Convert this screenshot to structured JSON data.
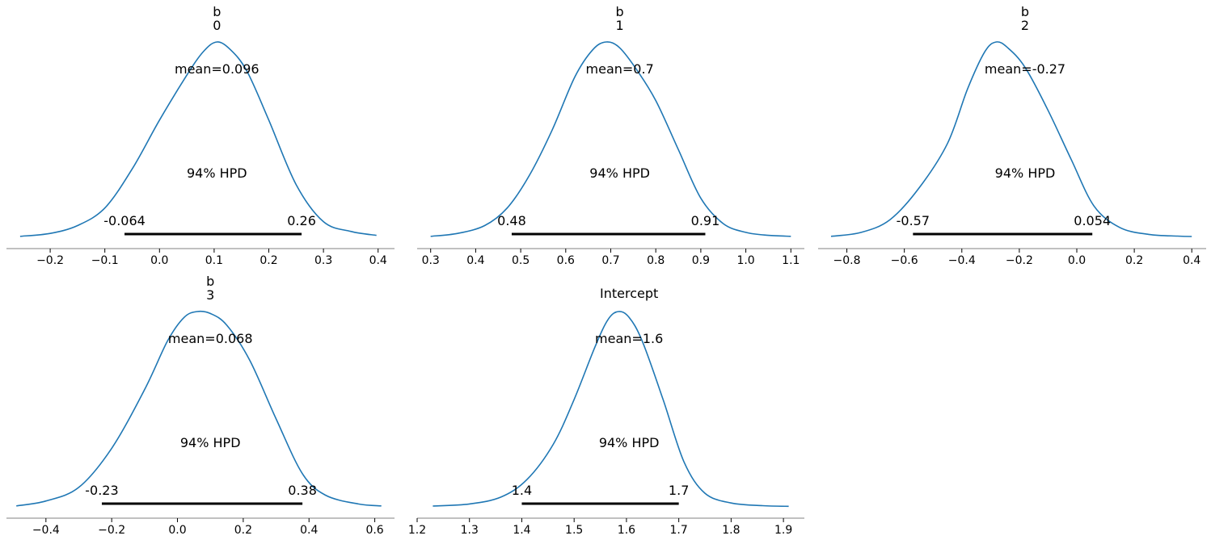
{
  "colors": {
    "curve": "#1f77b4",
    "hpd_bar": "#000000",
    "axis": "#808080"
  },
  "chart_data": [
    {
      "type": "line",
      "title_lines": [
        "b",
        "0"
      ],
      "mean_label": "mean=0.096",
      "hpd_label": "94% HPD",
      "hpd": {
        "low": -0.064,
        "high": 0.26,
        "low_label": "-0.064",
        "high_label": "0.26"
      },
      "xlim": [
        -0.28,
        0.43
      ],
      "ticks": [
        -0.2,
        -0.1,
        0.0,
        0.1,
        0.2,
        0.3,
        0.4
      ],
      "tick_labels": [
        "−0.2",
        "−0.1",
        "0.0",
        "0.1",
        "0.2",
        "0.3",
        "0.4"
      ],
      "density": {
        "x": [
          -0.255,
          -0.2,
          -0.15,
          -0.1,
          -0.05,
          0.0,
          0.05,
          0.08,
          0.105,
          0.13,
          0.16,
          0.2,
          0.25,
          0.3,
          0.35,
          0.397
        ],
        "y": [
          0.005,
          0.02,
          0.06,
          0.15,
          0.35,
          0.6,
          0.83,
          0.95,
          1.0,
          0.96,
          0.85,
          0.6,
          0.27,
          0.08,
          0.03,
          0.01
        ]
      }
    },
    {
      "type": "line",
      "title_lines": [
        "b",
        "1"
      ],
      "mean_label": "mean=0.7",
      "hpd_label": "94% HPD",
      "hpd": {
        "low": 0.48,
        "high": 0.91,
        "low_label": "0.48",
        "high_label": "0.91"
      },
      "xlim": [
        0.27,
        1.13
      ],
      "ticks": [
        0.3,
        0.4,
        0.5,
        0.6,
        0.7,
        0.8,
        0.9,
        1.0,
        1.1
      ],
      "tick_labels": [
        "0.3",
        "0.4",
        "0.5",
        "0.6",
        "0.7",
        "0.8",
        "0.9",
        "1.0",
        "1.1"
      ],
      "density": {
        "x": [
          0.3,
          0.36,
          0.42,
          0.47,
          0.52,
          0.57,
          0.62,
          0.66,
          0.69,
          0.72,
          0.76,
          0.8,
          0.85,
          0.9,
          0.95,
          1.0,
          1.05,
          1.1
        ],
        "y": [
          0.005,
          0.02,
          0.06,
          0.15,
          0.32,
          0.55,
          0.82,
          0.96,
          1.0,
          0.97,
          0.85,
          0.7,
          0.45,
          0.2,
          0.07,
          0.025,
          0.01,
          0.005
        ]
      }
    },
    {
      "type": "line",
      "title_lines": [
        "b",
        "2"
      ],
      "mean_label": "mean=-0.27",
      "hpd_label": "94% HPD",
      "hpd": {
        "low": -0.57,
        "high": 0.054,
        "low_label": "-0.57",
        "high_label": "0.054"
      },
      "xlim": [
        -0.9,
        0.45
      ],
      "ticks": [
        -0.8,
        -0.6,
        -0.4,
        -0.2,
        0.0,
        0.2,
        0.4
      ],
      "tick_labels": [
        "−0.8",
        "−0.6",
        "−0.4",
        "−0.2",
        "0.0",
        "0.2",
        "0.4"
      ],
      "density": {
        "x": [
          -0.855,
          -0.75,
          -0.65,
          -0.55,
          -0.45,
          -0.38,
          -0.32,
          -0.28,
          -0.24,
          -0.18,
          -0.1,
          -0.02,
          0.06,
          0.15,
          0.25,
          0.35,
          0.4
        ],
        "y": [
          0.005,
          0.025,
          0.09,
          0.25,
          0.48,
          0.76,
          0.95,
          1.0,
          0.97,
          0.87,
          0.65,
          0.4,
          0.16,
          0.05,
          0.015,
          0.006,
          0.004
        ]
      }
    },
    {
      "type": "line",
      "title_lines": [
        "b",
        "3"
      ],
      "mean_label": "mean=0.068",
      "hpd_label": "94% HPD",
      "hpd": {
        "low": -0.23,
        "high": 0.38,
        "low_label": "-0.23",
        "high_label": "0.38"
      },
      "xlim": [
        -0.52,
        0.66
      ],
      "ticks": [
        -0.4,
        -0.2,
        0.0,
        0.2,
        0.4,
        0.6
      ],
      "tick_labels": [
        "−0.4",
        "−0.2",
        "0.0",
        "0.2",
        "0.4",
        "0.6"
      ],
      "density": {
        "x": [
          -0.49,
          -0.4,
          -0.3,
          -0.2,
          -0.1,
          -0.03,
          0.02,
          0.06,
          0.1,
          0.15,
          0.22,
          0.3,
          0.38,
          0.45,
          0.55,
          0.62
        ],
        "y": [
          0.005,
          0.03,
          0.1,
          0.3,
          0.6,
          0.85,
          0.97,
          1.0,
          0.99,
          0.93,
          0.75,
          0.45,
          0.17,
          0.06,
          0.015,
          0.005
        ]
      }
    },
    {
      "type": "line",
      "title_lines": [
        "Intercept"
      ],
      "mean_label": "mean=1.6",
      "hpd_label": "94% HPD",
      "hpd": {
        "low": 1.4,
        "high": 1.7,
        "low_label": "1.4",
        "high_label": "1.7"
      },
      "xlim": [
        1.2,
        1.94
      ],
      "ticks": [
        1.2,
        1.3,
        1.4,
        1.5,
        1.6,
        1.7,
        1.8,
        1.9
      ],
      "tick_labels": [
        "1.2",
        "1.3",
        "1.4",
        "1.5",
        "1.6",
        "1.7",
        "1.8",
        "1.9"
      ],
      "density": {
        "x": [
          1.23,
          1.3,
          1.36,
          1.41,
          1.46,
          1.5,
          1.54,
          1.565,
          1.585,
          1.605,
          1.63,
          1.67,
          1.71,
          1.75,
          1.8,
          1.86,
          1.91
        ],
        "y": [
          0.004,
          0.015,
          0.05,
          0.14,
          0.32,
          0.55,
          0.82,
          0.96,
          1.0,
          0.97,
          0.85,
          0.55,
          0.23,
          0.07,
          0.02,
          0.006,
          0.003
        ]
      }
    }
  ]
}
